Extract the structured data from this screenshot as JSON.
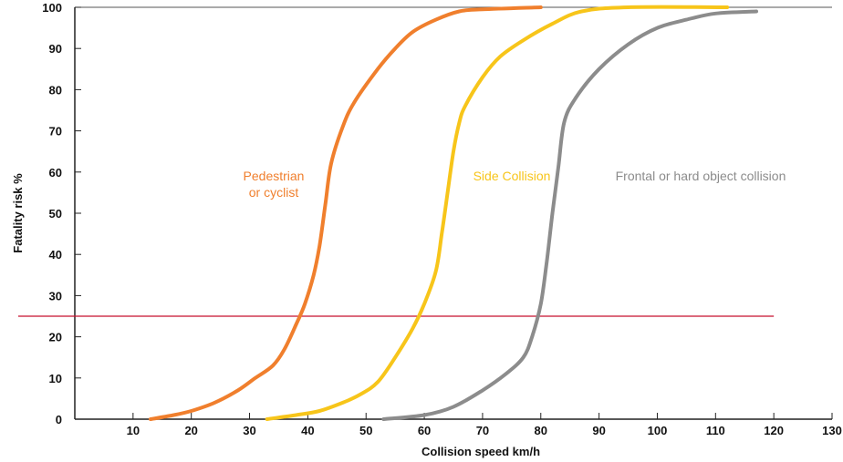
{
  "chart_data": {
    "type": "line",
    "title": "",
    "xlabel": "Collision speed km/h",
    "ylabel": "Fatality risk %",
    "xlim": [
      0,
      130
    ],
    "ylim": [
      0,
      100
    ],
    "xticks": [
      10,
      20,
      30,
      40,
      50,
      60,
      70,
      80,
      90,
      100,
      110,
      120,
      130
    ],
    "yticks": [
      0,
      10,
      20,
      30,
      40,
      50,
      60,
      70,
      80,
      90,
      100
    ],
    "grid": false,
    "reference_line": {
      "y": 25,
      "x_range": [
        0,
        120
      ],
      "color": "#c8102e"
    },
    "series": [
      {
        "name": "Pedestrian or cyclist",
        "label_lines": [
          "Pedestrian",
          "or cyclist"
        ],
        "color": "#f07f2d",
        "x": [
          13,
          17,
          20,
          24,
          28,
          31,
          34,
          36,
          38,
          39.5,
          41,
          42,
          43,
          44,
          46,
          48,
          52,
          55,
          58,
          62,
          66,
          70,
          80
        ],
        "y": [
          0,
          1,
          2,
          4,
          7,
          10,
          13,
          17,
          23,
          28,
          35,
          42,
          52,
          62,
          71,
          77,
          85,
          90,
          94,
          97,
          99,
          99.5,
          100
        ]
      },
      {
        "name": "Side Collision",
        "label_lines": [
          "Side Collision"
        ],
        "color": "#f7c51a",
        "x": [
          33,
          38,
          42,
          46,
          49,
          52,
          55,
          58,
          60,
          62,
          63,
          64,
          65,
          66,
          67,
          70,
          73,
          77,
          82,
          87,
          95,
          112
        ],
        "y": [
          0,
          1,
          2,
          4,
          6,
          9,
          15,
          22,
          28,
          36,
          45,
          55,
          65,
          72,
          76,
          83,
          88,
          92,
          96,
          99,
          100,
          100
        ]
      },
      {
        "name": "Frontal or hard object collision",
        "label_lines": [
          "Frontal or hard object collision"
        ],
        "color": "#8c8c8c",
        "x": [
          53,
          60,
          65,
          70,
          74,
          77,
          78.5,
          80,
          81,
          82,
          83,
          84,
          86,
          90,
          95,
          100,
          105,
          110,
          117
        ],
        "y": [
          0,
          1,
          3,
          7,
          11,
          15,
          20,
          28,
          38,
          50,
          61,
          72,
          78,
          85,
          91,
          95,
          97,
          98.5,
          99
        ]
      }
    ]
  }
}
